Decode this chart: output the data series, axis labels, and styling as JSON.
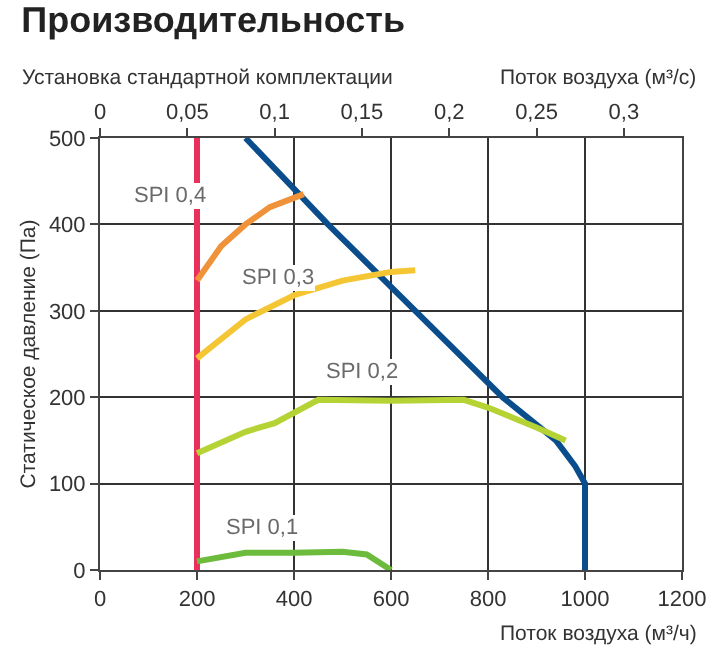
{
  "chart_data": {
    "type": "line",
    "title": "Производительность",
    "subtitle": "Установка стандартной комплектации",
    "xlabel": "Поток воздуха (м³/ч)",
    "x2label": "Поток воздуха (м³/с)",
    "ylabel": "Статическое давление (Па)",
    "xlim": [
      0,
      1200
    ],
    "xticks": [
      0,
      200,
      400,
      600,
      800,
      1000,
      1200
    ],
    "ylim": [
      0,
      500
    ],
    "yticks": [
      0,
      100,
      200,
      300,
      400,
      500
    ],
    "x2lim": [
      0,
      0.3333
    ],
    "x2ticks": [
      0,
      {
        "value": 0.05,
        "label": "0,05"
      },
      {
        "value": 0.1,
        "label": "0,1"
      },
      {
        "value": 0.15,
        "label": "0,15"
      },
      {
        "value": 0.2,
        "label": "0,2"
      },
      {
        "value": 0.25,
        "label": "0,25"
      },
      {
        "value": 0.3,
        "label": "0,3"
      }
    ],
    "grid": true,
    "legend": false,
    "marker": "none",
    "line_style": "solid",
    "series": [
      {
        "color": "#e8305a",
        "x": [
          200,
          200
        ],
        "values": [
          0,
          500
        ]
      },
      {
        "color": "#0a4d8c",
        "x": [
          300,
          470,
          650,
          830,
          940,
          980,
          1000,
          1000
        ],
        "values": [
          500,
          400,
          300,
          200,
          150,
          120,
          100,
          0
        ]
      },
      {
        "name": "SPI 0,4",
        "color": "#f0923a",
        "x": [
          200,
          250,
          300,
          350,
          420
        ],
        "values": [
          335,
          375,
          400,
          420,
          435
        ]
      },
      {
        "name": "SPI 0,3",
        "color": "#f5c634",
        "x": [
          200,
          300,
          400,
          500,
          600,
          650
        ],
        "values": [
          245,
          290,
          318,
          335,
          345,
          347
        ]
      },
      {
        "name": "SPI 0,2",
        "color": "#b5d334",
        "x": [
          200,
          300,
          360,
          450,
          600,
          750,
          800,
          900,
          960
        ],
        "values": [
          135,
          160,
          170,
          197,
          196,
          197,
          188,
          165,
          150
        ]
      },
      {
        "name": "SPI 0,1",
        "color": "#6cbb3c",
        "x": [
          200,
          300,
          400,
          500,
          550,
          600
        ],
        "values": [
          10,
          20,
          20,
          21,
          18,
          0
        ]
      }
    ]
  }
}
